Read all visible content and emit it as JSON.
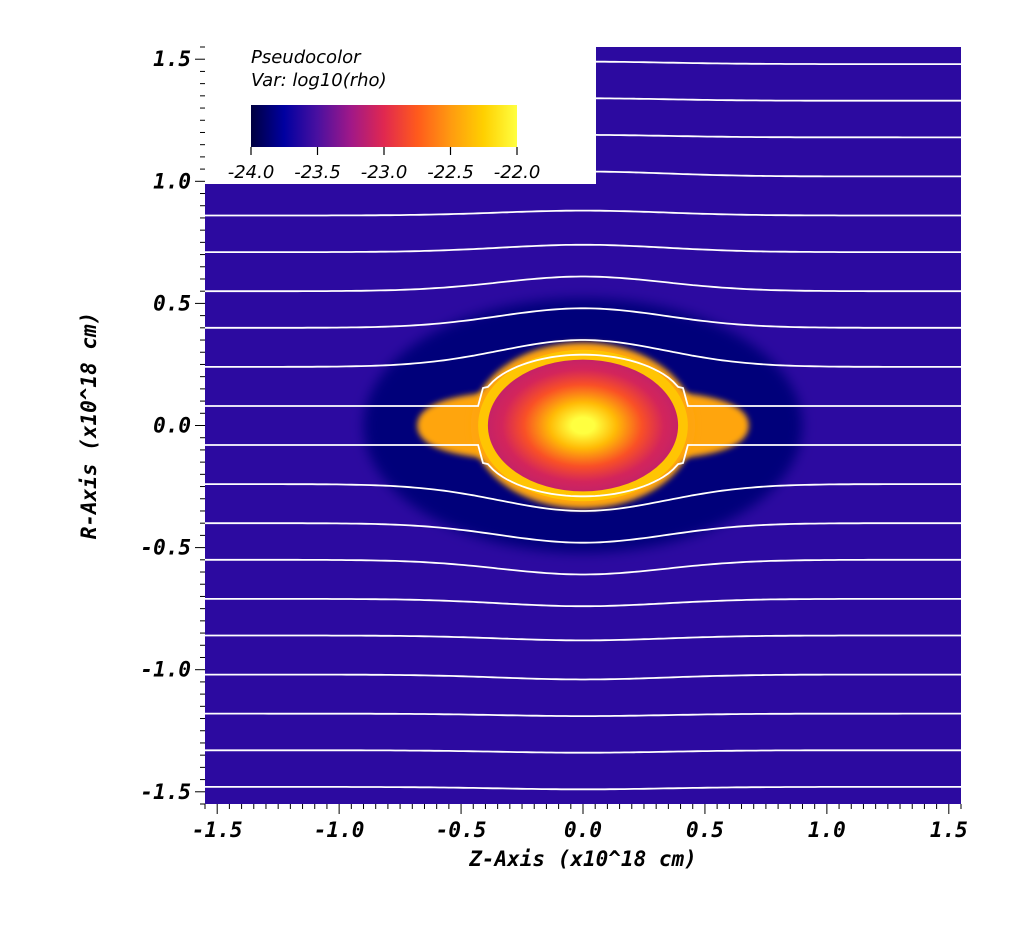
{
  "chart_data": {
    "type": "heatmap",
    "plot_type": "Pseudocolor",
    "variable_label": "Var: log10(rho)",
    "colormap": "hot",
    "colors": [
      "#000040",
      "#0000a0",
      "#4a10a0",
      "#a01888",
      "#e02850",
      "#ff5a1c",
      "#ff9a10",
      "#ffd000",
      "#ffff40"
    ],
    "background_value": -23.6,
    "xlabel": "Z-Axis (x10^18 cm)",
    "ylabel": "R-Axis (x10^18 cm)",
    "xlim": [
      -1.55,
      1.55
    ],
    "ylim": [
      -1.55,
      1.55
    ],
    "x_ticks": [
      -1.5,
      -1.0,
      -0.5,
      0.0,
      0.5,
      1.0,
      1.5
    ],
    "x_tick_labels": [
      "-1.5",
      "-1.0",
      "-0.5",
      "0.0",
      "0.5",
      "1.0",
      "1.5"
    ],
    "y_ticks": [
      1.5,
      1.0,
      0.5,
      0.0,
      -0.5,
      -1.0,
      -1.5
    ],
    "y_tick_labels": [
      "1.5",
      "1.0",
      "0.5",
      "0.0",
      "-0.5",
      "-1.0",
      "-1.5"
    ],
    "colorbar": {
      "range": [
        -24.0,
        -22.0
      ],
      "tick_labels": [
        "-24.0",
        "-23.5",
        "-23.0",
        "-22.5",
        "-22.0"
      ]
    },
    "features": {
      "core_log_rho": -22.0,
      "shell_radius_z": 0.42,
      "shell_radius_r": 0.3,
      "wing_extent_z": 0.68,
      "wing_half_height_r": 0.09
    },
    "streamlines": {
      "color": "#ffffff",
      "far_r_values": [
        1.48,
        1.33,
        1.18,
        1.02,
        0.86,
        0.71,
        0.55,
        0.4,
        0.24,
        0.08,
        -0.08,
        -0.24,
        -0.4,
        -0.55,
        -0.71,
        -0.86,
        -1.02,
        -1.18,
        -1.33,
        -1.48
      ],
      "center_r_values": [
        1.49,
        1.34,
        1.19,
        1.04,
        0.88,
        0.74,
        0.61,
        0.48,
        0.35,
        0.29,
        -0.29,
        -0.35,
        -0.48,
        -0.61,
        -0.74,
        -0.88,
        -1.04,
        -1.19,
        -1.34,
        -1.49
      ],
      "deflection_half_width_z": 0.33
    },
    "grid": false
  }
}
